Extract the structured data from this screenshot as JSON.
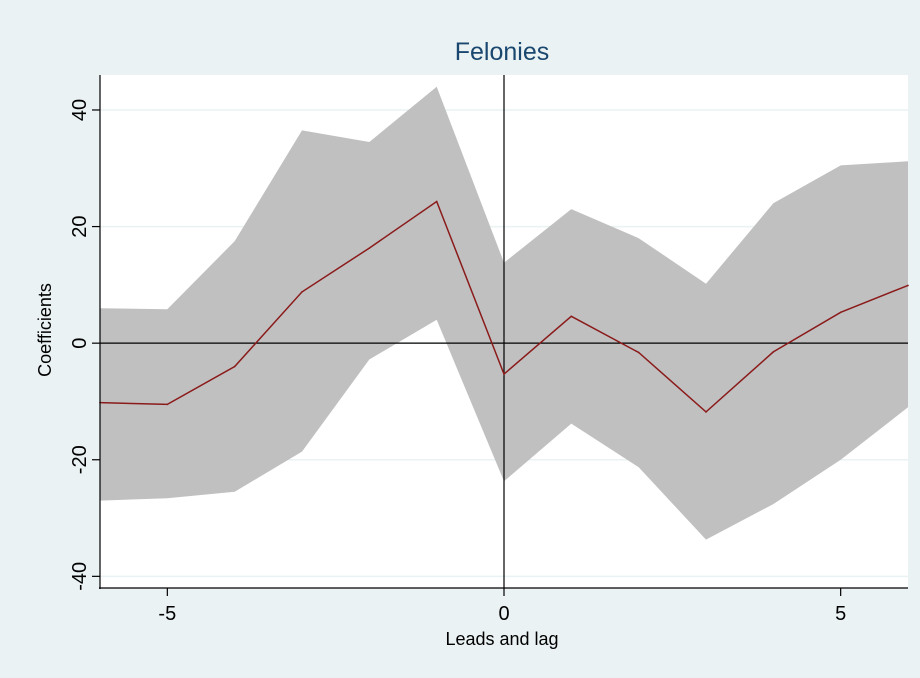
{
  "chart_data": {
    "type": "line",
    "title": "Felonies",
    "xlabel": "Leads and lag",
    "ylabel": "Coefficients",
    "xlim": [
      -6,
      6
    ],
    "ylim": [
      -42,
      46
    ],
    "x_ticks": [
      -5,
      0,
      5
    ],
    "x_tick_labels": [
      "-5",
      "0",
      "5"
    ],
    "y_ticks": [
      -40,
      -20,
      0,
      20,
      40
    ],
    "y_tick_labels": [
      "-40",
      "-20",
      "0",
      "20",
      "40"
    ],
    "grid": true,
    "reference_lines": {
      "x": 0,
      "y": 0
    },
    "x": [
      -6,
      -5,
      -4,
      -3,
      -2,
      -1,
      0,
      1,
      2,
      3,
      4,
      5,
      6
    ],
    "series": [
      {
        "values": [
          -10.2,
          -10.5,
          -4,
          8.8,
          16.3,
          24.3,
          -5.3,
          4.6,
          -1.6,
          -11.8,
          -1.5,
          5.3,
          9.9
        ]
      }
    ],
    "ci_lower": [
      -27,
      -26.6,
      -25.5,
      -18.6,
      -2.8,
      4,
      -23.7,
      -13.8,
      -21.3,
      -33.7,
      -27.6,
      -20,
      -11
    ],
    "ci_upper": [
      6,
      5.8,
      17.5,
      36.5,
      34.5,
      44,
      13.8,
      23,
      18,
      10.2,
      24,
      30.5,
      31.2
    ],
    "colors": {
      "outer_background": "#eaf2f3",
      "plot_background": "#ffffff",
      "grid": "#eaf2f3",
      "ci_band": "#c0c0c0",
      "line": "#8b1a1a",
      "reference_line": "#000000",
      "title": "#1a476f"
    }
  }
}
